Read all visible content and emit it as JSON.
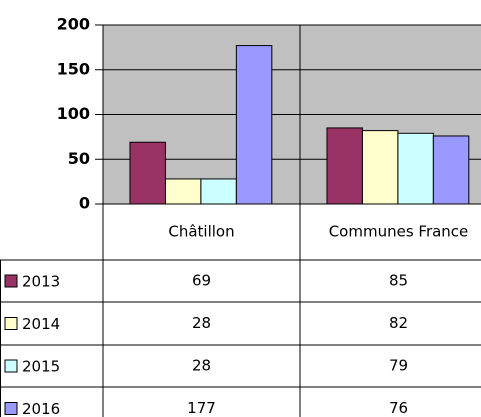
{
  "chart_data": {
    "type": "bar",
    "categories": [
      "Châtillon",
      "Communes France"
    ],
    "series": [
      {
        "name": "2013",
        "color": "#993366",
        "values": [
          69,
          85
        ]
      },
      {
        "name": "2014",
        "color": "#ffffcc",
        "values": [
          28,
          82
        ]
      },
      {
        "name": "2015",
        "color": "#ccffff",
        "values": [
          28,
          79
        ]
      },
      {
        "name": "2016",
        "color": "#9999ff",
        "values": [
          177,
          76
        ]
      }
    ],
    "ylim": [
      0,
      200
    ],
    "yticks": [
      0,
      50,
      100,
      150,
      200
    ],
    "grid": true
  }
}
